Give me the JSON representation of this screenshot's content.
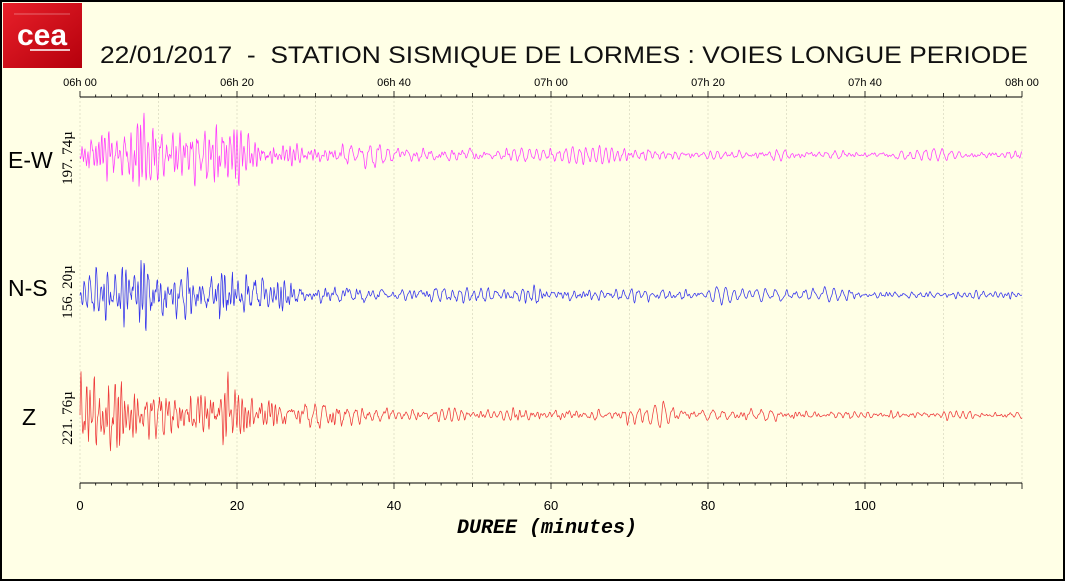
{
  "logo": {
    "text": "cea"
  },
  "colors": {
    "background": "#ffffe6",
    "border": "#000000",
    "logo_red": "#d7101c",
    "grid": "#dcdcc4"
  },
  "chart_data": {
    "type": "line",
    "title": "22/01/2017  -  STATION SISMIQUE DE LORMES : VOIES LONGUE PERIODE",
    "xlabel": "DUREE (minutes)",
    "ylabel": "",
    "xlim": [
      0,
      120
    ],
    "x_ticks": [
      "0",
      "20",
      "40",
      "60",
      "80",
      "100"
    ],
    "x_tick_values": [
      0,
      20,
      40,
      60,
      80,
      100
    ],
    "time_ticks": [
      "06h 00",
      "06h 20",
      "06h 40",
      "07h 00",
      "07h 20",
      "07h 40",
      "08h 00"
    ],
    "time_tick_values": [
      0,
      20,
      40,
      60,
      80,
      100,
      120
    ],
    "grid": true,
    "series": [
      {
        "name": "E-W",
        "scale": "197. 74µ",
        "color": "#ff3cff"
      },
      {
        "name": "N-S",
        "scale": "156. 20µ",
        "color": "#3434ec"
      },
      {
        "name": "Z",
        "scale": "221. 76µ",
        "color": "#ee3a3a"
      }
    ]
  }
}
